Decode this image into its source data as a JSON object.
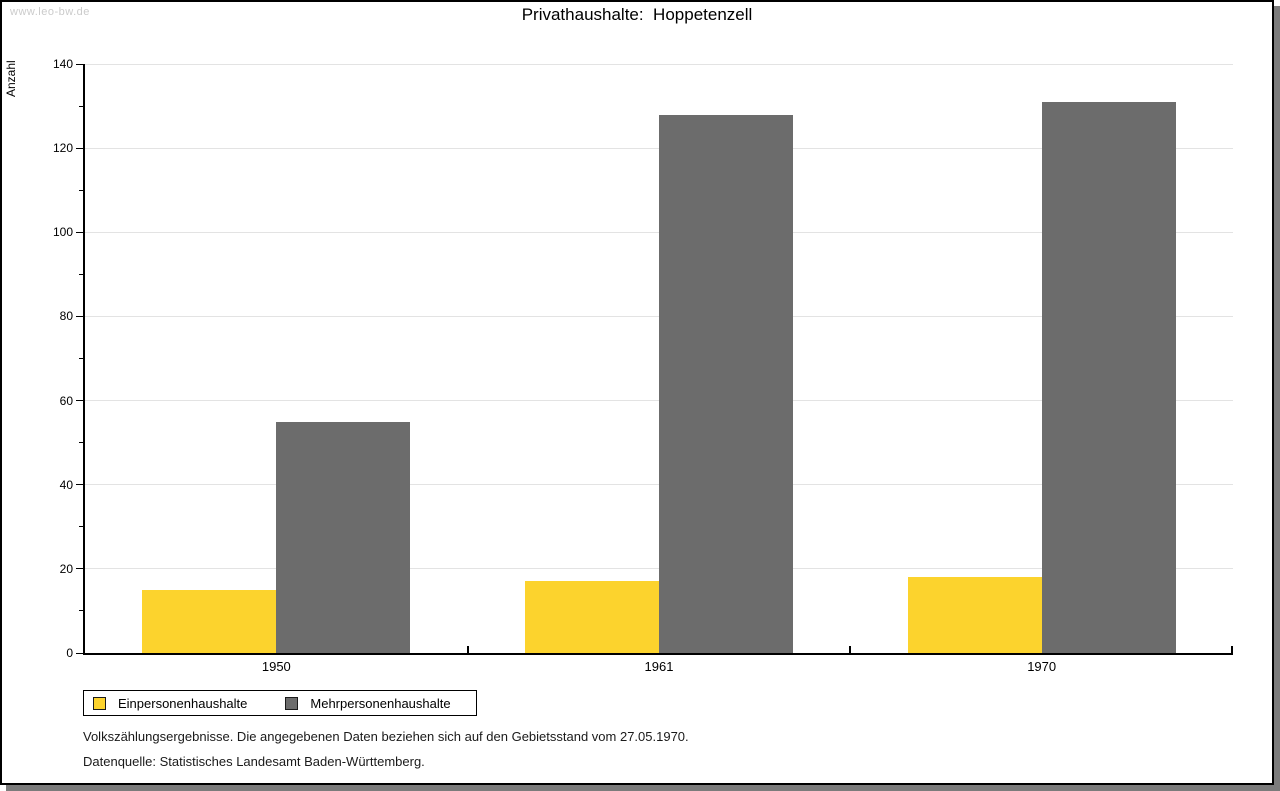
{
  "watermark": "www.leo-bw.de",
  "chart_data": {
    "type": "bar",
    "title": "Privathaushalte:  Hoppetenzell",
    "ylabel": "Anzahl",
    "xlabel": "",
    "categories": [
      "1950",
      "1961",
      "1970"
    ],
    "series": [
      {
        "name": "Einpersonenhaushalte",
        "color": "#fcd32d",
        "values": [
          15,
          17,
          18
        ]
      },
      {
        "name": "Mehrpersonenhaushalte",
        "color": "#6c6c6c",
        "values": [
          55,
          128,
          131
        ]
      }
    ],
    "ylim": [
      0,
      140
    ],
    "y_major_step": 20,
    "y_minor_step": 10,
    "grid": true,
    "legend_position": "bottom-left"
  },
  "footnotes": {
    "line1": "Volkszählungsergebnisse. Die angegebenen Daten beziehen sich auf den Gebietsstand vom 27.05.1970.",
    "line2": "Datenquelle: Statistisches Landesamt Baden-Württemberg."
  }
}
